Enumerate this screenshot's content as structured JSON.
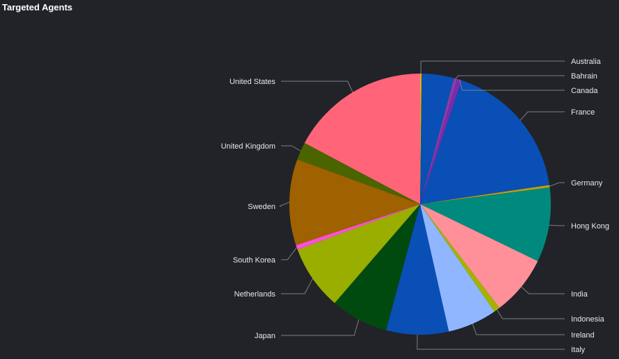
{
  "panel": {
    "title": "Targeted Agents"
  },
  "chart_data": {
    "type": "pie",
    "title": "Targeted Agents",
    "start": "top, clockwise",
    "slices": [
      {
        "label": "Australia",
        "value": 0.2,
        "color": "#e0b400"
      },
      {
        "label": "",
        "value": 4.2,
        "color": "#0a4fb5"
      },
      {
        "label": "Bahrain",
        "value": 0.4,
        "color": "#8b3fa3"
      },
      {
        "label": "Canada",
        "value": 0.6,
        "color": "#7a2bb0"
      },
      {
        "label": "France",
        "value": 18.4,
        "color": "#0a4fb5"
      },
      {
        "label": "Germany",
        "value": 0.3,
        "color": "#c8a000"
      },
      {
        "label": "Hong Kong",
        "value": 9.7,
        "color": "#008a7e"
      },
      {
        "label": "India",
        "value": 7.8,
        "color": "#ff8f99"
      },
      {
        "label": "Indonesia",
        "value": 0.8,
        "color": "#a3b300"
      },
      {
        "label": "Ireland",
        "value": 6.4,
        "color": "#8fb6ff"
      },
      {
        "label": "Italy",
        "value": 8.1,
        "color": "#0a4fb5"
      },
      {
        "label": "Japan",
        "value": 7.5,
        "color": "#004a10"
      },
      {
        "label": "Netherlands",
        "value": 8.4,
        "color": "#9aae00"
      },
      {
        "label": "South Korea",
        "value": 0.6,
        "color": "#ff4fd8"
      },
      {
        "label": "Sweden",
        "value": 11.2,
        "color": "#a06100"
      },
      {
        "label": "United Kingdom",
        "value": 2.3,
        "color": "#4a6400"
      },
      {
        "label": "United States",
        "value": 18.1,
        "color": "#ff6478"
      }
    ]
  }
}
